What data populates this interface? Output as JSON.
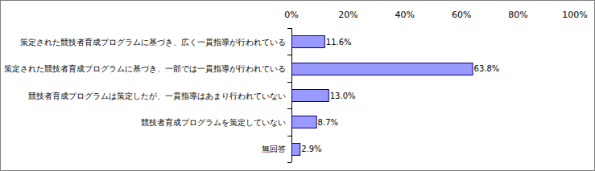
{
  "chart_data": {
    "type": "bar",
    "orientation": "horizontal",
    "categories": [
      "策定された競技者育成プログラムに基づき、広く一貫指導が行われている",
      "策定された競技者育成プログラムに基づき、一部では一貫指導が行われている",
      "競技者育成プログラムは策定したが、一貫指導はあまり行われていない",
      "競技者育成プログラムを策定していない",
      "無回答"
    ],
    "values": [
      11.6,
      63.8,
      13.0,
      8.7,
      2.9
    ],
    "value_labels": [
      "11.6%",
      "63.8%",
      "13.0%",
      "8.7%",
      "2.9%"
    ],
    "color": "#9999ff",
    "xlim": [
      0,
      100
    ],
    "xticks": [
      {
        "value": 0,
        "label": "0%"
      },
      {
        "value": 20,
        "label": "20%"
      },
      {
        "value": 40,
        "label": "40%"
      },
      {
        "value": 60,
        "label": "60%"
      },
      {
        "value": 80,
        "label": "80%"
      },
      {
        "value": 100,
        "label": "100%"
      }
    ],
    "grid": false,
    "data_labels": true
  }
}
